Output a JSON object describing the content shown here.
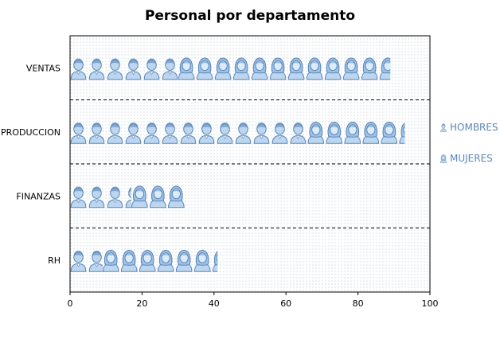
{
  "chart_data": {
    "type": "bar",
    "orientation": "horizontal",
    "stacked": true,
    "title": "Personal por departamento",
    "categories": [
      "VENTAS",
      "PRODUCCION",
      "FINANZAS",
      "RH"
    ],
    "series": [
      {
        "name": "HOMBRES",
        "values": [
          30,
          66,
          17,
          9
        ],
        "icon": "man-icon"
      },
      {
        "name": "MUJERES",
        "values": [
          59,
          27,
          15,
          32
        ],
        "icon": "woman-icon"
      }
    ],
    "xlim": [
      0,
      100
    ],
    "xticks": [
      0,
      20,
      40,
      60,
      80,
      100
    ],
    "legend_position": "right",
    "colors": {
      "fill": "#bcd6f0",
      "stroke": "#5a86b8",
      "dots": "#9fb3c8",
      "divider": "#000000"
    }
  }
}
